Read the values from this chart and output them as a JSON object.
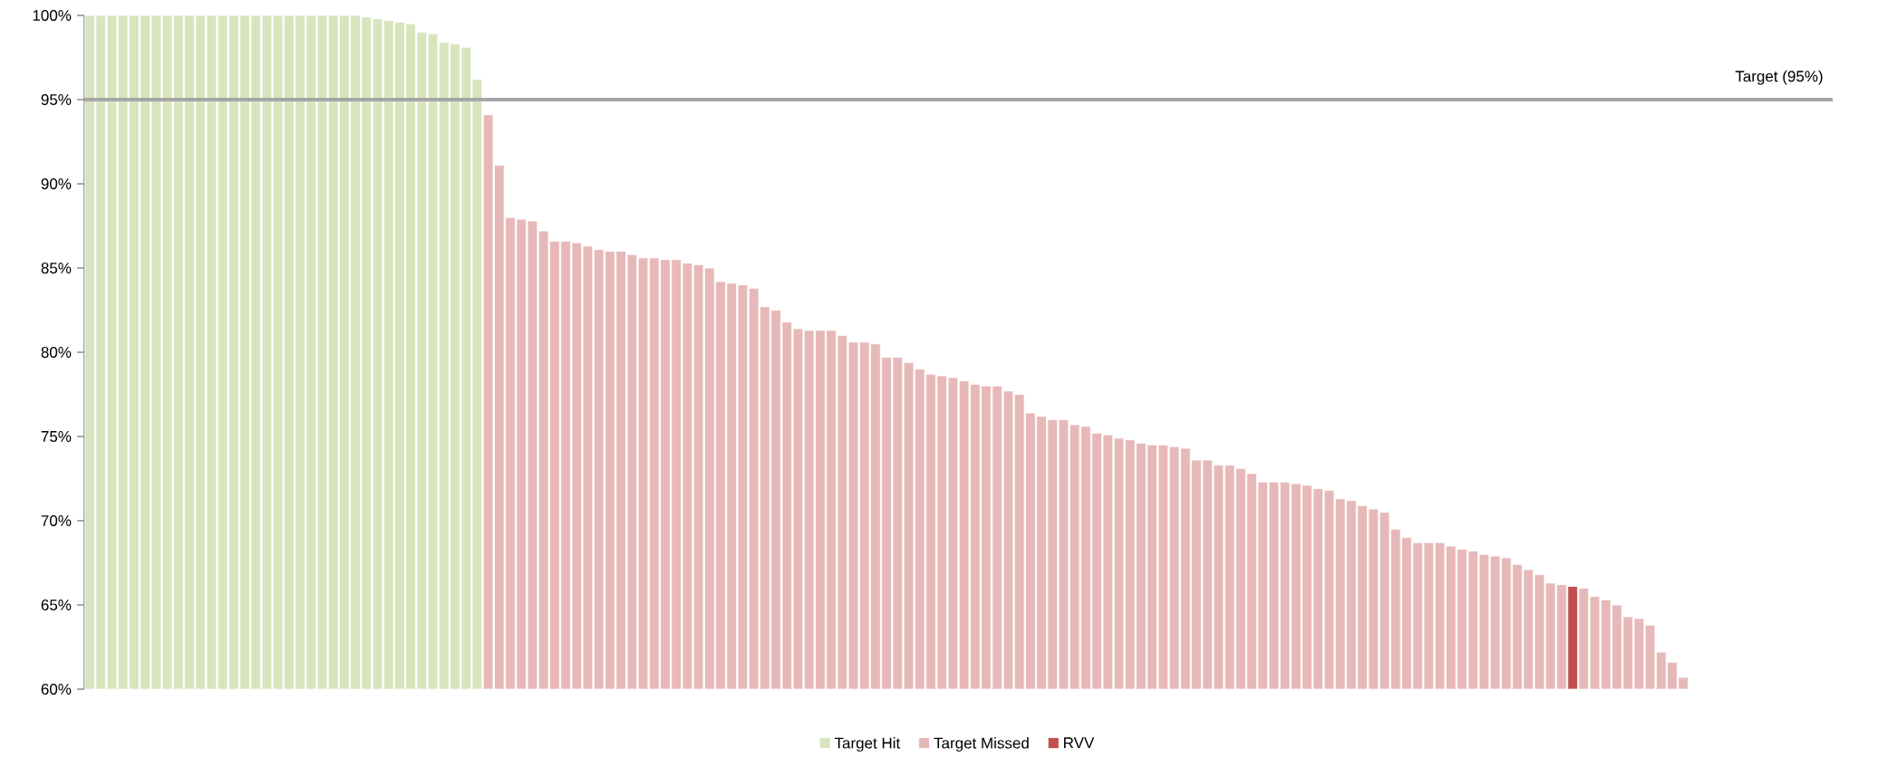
{
  "chart_data": {
    "type": "bar",
    "categories": [
      null,
      null,
      null,
      null,
      null,
      null,
      null,
      null,
      null,
      null,
      null,
      null,
      null,
      null,
      null,
      null,
      null,
      null,
      null,
      null,
      null,
      null,
      null,
      null,
      null,
      null,
      null,
      null,
      null,
      null,
      null,
      null,
      null,
      null,
      null,
      null,
      null,
      null,
      null,
      null,
      null,
      null,
      null,
      null,
      null,
      null,
      null,
      null,
      null,
      null,
      null,
      null,
      null,
      null,
      null,
      null,
      null,
      null,
      null,
      null,
      null,
      null,
      null,
      null,
      null,
      null,
      null,
      null,
      null,
      null,
      null,
      null,
      null,
      null,
      null,
      null,
      null,
      null,
      null,
      null,
      null,
      null,
      null,
      null,
      null,
      null,
      null,
      null,
      null,
      null,
      null,
      null,
      null,
      null,
      null,
      null,
      null,
      null,
      null,
      null,
      null,
      null,
      null,
      null,
      null,
      null,
      null,
      null,
      null,
      null,
      null,
      null,
      null,
      null,
      null,
      null,
      null,
      null,
      null,
      null,
      null,
      null,
      null,
      null,
      null,
      null,
      null,
      null,
      null,
      null,
      null,
      null,
      null,
      null,
      null,
      null,
      null,
      null,
      null,
      null,
      null,
      null,
      null,
      null,
      null,
      null,
      null,
      null,
      null,
      null,
      null,
      null,
      null,
      null,
      null,
      null,
      null,
      null
    ],
    "series": [
      {
        "name": "Target Hit",
        "color": "#d7e4bd",
        "values": [
          100,
          100,
          100,
          100,
          100,
          100,
          100,
          100,
          100,
          100,
          100,
          100,
          100,
          100,
          100,
          100,
          100,
          100,
          100,
          100,
          100,
          100,
          100,
          100,
          100,
          99.9,
          99.8,
          99.7,
          99.6,
          99.5,
          99.0,
          98.9,
          98.4,
          98.3,
          98.1,
          96.2,
          null,
          null,
          null,
          null,
          null,
          null,
          null,
          null,
          null,
          null,
          null,
          null,
          null,
          null,
          null,
          null,
          null,
          null,
          null,
          null,
          null,
          null,
          null,
          null,
          null,
          null,
          null,
          null,
          null,
          null,
          null,
          null,
          null,
          null,
          null,
          null,
          null,
          null,
          null,
          null,
          null,
          null,
          null,
          null,
          null,
          null,
          null,
          null,
          null,
          null,
          null,
          null,
          null,
          null,
          null,
          null,
          null,
          null,
          null,
          null,
          null,
          null,
          null,
          null,
          null,
          null,
          null,
          null,
          null,
          null,
          null,
          null,
          null,
          null,
          null,
          null,
          null,
          null,
          null,
          null,
          null,
          null,
          null,
          null,
          null,
          null,
          null,
          null,
          null,
          null,
          null,
          null,
          null,
          null,
          null,
          null,
          null,
          null,
          null,
          null,
          null,
          null,
          null,
          null,
          null,
          null,
          null,
          null,
          null,
          null,
          null,
          null,
          null,
          null,
          null,
          null,
          null,
          null,
          null,
          null,
          null,
          null
        ]
      },
      {
        "name": "Target Missed",
        "color": "#e6b9b8",
        "values": [
          null,
          null,
          null,
          null,
          null,
          null,
          null,
          null,
          null,
          null,
          null,
          null,
          null,
          null,
          null,
          null,
          null,
          null,
          null,
          null,
          null,
          null,
          null,
          null,
          null,
          null,
          null,
          null,
          null,
          null,
          null,
          null,
          null,
          null,
          null,
          null,
          94.1,
          91.1,
          88.0,
          87.9,
          87.8,
          87.2,
          86.6,
          86.6,
          86.5,
          86.3,
          86.1,
          86.0,
          86.0,
          85.8,
          85.6,
          85.6,
          85.5,
          85.5,
          85.3,
          85.2,
          85.0,
          84.2,
          84.1,
          84.0,
          83.8,
          82.7,
          82.5,
          81.8,
          81.4,
          81.3,
          81.3,
          81.3,
          81.0,
          80.6,
          80.6,
          80.5,
          79.7,
          79.7,
          79.4,
          79.0,
          78.7,
          78.6,
          78.5,
          78.3,
          78.1,
          78.0,
          78.0,
          77.7,
          77.5,
          76.4,
          76.2,
          76.0,
          76.0,
          75.7,
          75.6,
          75.2,
          75.1,
          74.9,
          74.8,
          74.6,
          74.5,
          74.5,
          74.4,
          74.3,
          73.6,
          73.6,
          73.3,
          73.3,
          73.1,
          72.8,
          72.3,
          72.3,
          72.3,
          72.2,
          72.1,
          71.9,
          71.8,
          71.3,
          71.2,
          70.9,
          70.7,
          70.5,
          69.5,
          69.0,
          68.7,
          68.7,
          68.7,
          68.5,
          68.3,
          68.2,
          68.0,
          67.9,
          67.8,
          67.4,
          67.1,
          66.8,
          66.3,
          66.2,
          null,
          66.0,
          65.5,
          65.3,
          65.0,
          64.3,
          64.2,
          63.8,
          62.2,
          61.6,
          60.7,
          null,
          null,
          null,
          null,
          null,
          null,
          null,
          null,
          null,
          null,
          null,
          null,
          null
        ]
      },
      {
        "name": "RVV",
        "color": "#c0504d",
        "values": [
          null,
          null,
          null,
          null,
          null,
          null,
          null,
          null,
          null,
          null,
          null,
          null,
          null,
          null,
          null,
          null,
          null,
          null,
          null,
          null,
          null,
          null,
          null,
          null,
          null,
          null,
          null,
          null,
          null,
          null,
          null,
          null,
          null,
          null,
          null,
          null,
          null,
          null,
          null,
          null,
          null,
          null,
          null,
          null,
          null,
          null,
          null,
          null,
          null,
          null,
          null,
          null,
          null,
          null,
          null,
          null,
          null,
          null,
          null,
          null,
          null,
          null,
          null,
          null,
          null,
          null,
          null,
          null,
          null,
          null,
          null,
          null,
          null,
          null,
          null,
          null,
          null,
          null,
          null,
          null,
          null,
          null,
          null,
          null,
          null,
          null,
          null,
          null,
          null,
          null,
          null,
          null,
          null,
          null,
          null,
          null,
          null,
          null,
          null,
          null,
          null,
          null,
          null,
          null,
          null,
          null,
          null,
          null,
          null,
          null,
          null,
          null,
          null,
          null,
          null,
          null,
          null,
          null,
          null,
          null,
          null,
          null,
          null,
          null,
          null,
          null,
          null,
          null,
          null,
          null,
          null,
          null,
          null,
          null,
          66.1,
          null,
          null,
          null,
          null,
          null,
          null,
          null,
          null,
          null,
          null,
          null,
          null,
          null,
          null,
          null,
          null,
          null,
          null,
          null,
          null,
          null,
          null,
          null
        ]
      }
    ],
    "ylim": [
      60,
      100
    ],
    "yticks": [
      {
        "value": 60,
        "label": "60%"
      },
      {
        "value": 65,
        "label": "65%"
      },
      {
        "value": 70,
        "label": "70%"
      },
      {
        "value": 75,
        "label": "75%"
      },
      {
        "value": 80,
        "label": "80%"
      },
      {
        "value": 85,
        "label": "85%"
      },
      {
        "value": 90,
        "label": "90%"
      },
      {
        "value": 95,
        "label": "95%"
      },
      {
        "value": 100,
        "label": "100%"
      }
    ],
    "ref_lines": [
      {
        "axis": "y",
        "value": 95,
        "label": "Target (95%)",
        "color": "#a6a6a6"
      }
    ],
    "legend": "bottom"
  }
}
